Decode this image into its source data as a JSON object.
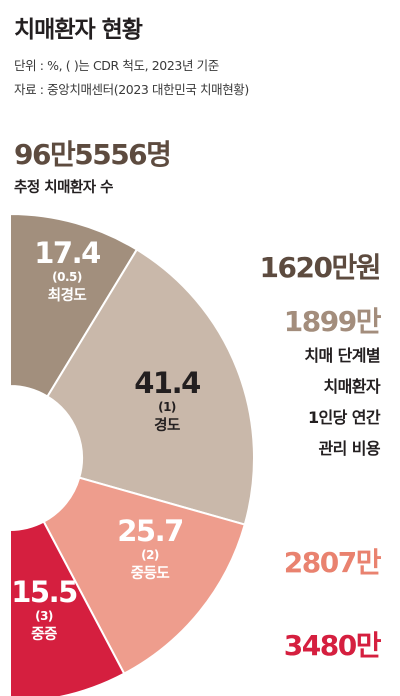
{
  "header": {
    "title": "치매환자 현황",
    "unit_note": "단위 : %, ( )는 CDR 척도, 2023년 기준",
    "source_note": "자료 : 중앙치매센터(2023 대한민국 치매현황)"
  },
  "summary": {
    "total_value": "96만5556명",
    "total_label": "추정 치매환자 수"
  },
  "cost_caption": [
    "치매 단계별",
    "치매환자",
    "1인당 연간",
    "관리 비용"
  ],
  "chart_data": {
    "type": "pie",
    "title": "",
    "categories": [
      "최경도",
      "경도",
      "중등도",
      "중증"
    ],
    "cdr": [
      "(0.5)",
      "(1)",
      "(2)",
      "(3)"
    ],
    "values": [
      17.4,
      41.4,
      25.7,
      15.5
    ],
    "value_labels": [
      "17.4",
      "41.4",
      "25.7",
      "15.5"
    ],
    "annual_cost_labels": [
      "1620만원",
      "1899만",
      "2807만",
      "3480만"
    ],
    "colors": [
      "#a28f7d",
      "#c9b8aa",
      "#ee9d8d",
      "#d51f3f"
    ],
    "cost_colors": [
      "#5d4b3f",
      "#a38d7c",
      "#e9826f",
      "#d51f3f"
    ]
  }
}
